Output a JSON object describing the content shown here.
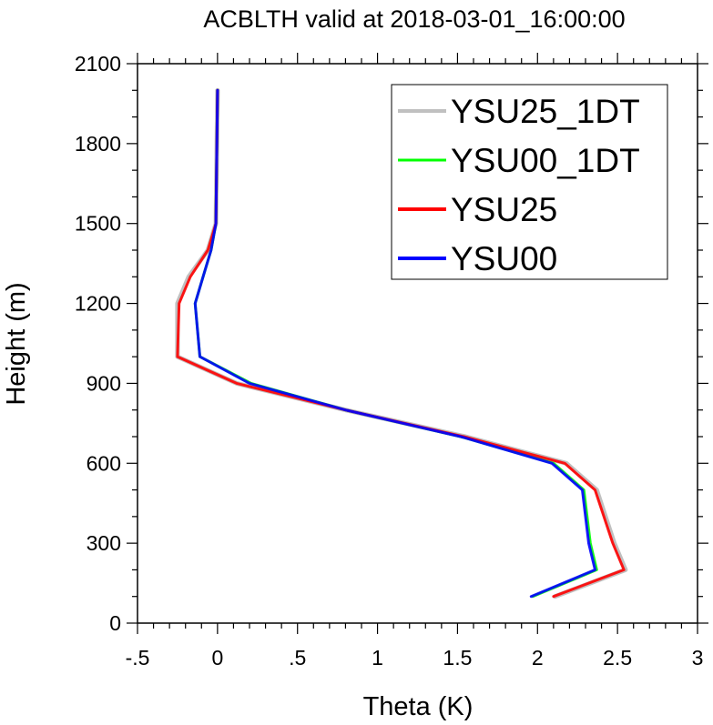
{
  "chart_data": {
    "type": "line",
    "title": "ACBLTH valid at 2018-03-01_16:00:00",
    "xlabel": "Theta (K)",
    "ylabel": "Height (m)",
    "xlim": [
      -0.5,
      3
    ],
    "ylim": [
      0,
      2100
    ],
    "x_ticks": [
      -0.5,
      0,
      0.5,
      1,
      1.5,
      2,
      2.5,
      3
    ],
    "x_tick_labels": [
      "-.5",
      "0",
      ".5",
      "1",
      "1.5",
      "2",
      "2.5",
      "3"
    ],
    "y_ticks": [
      0,
      300,
      600,
      900,
      1200,
      1500,
      1800,
      2100
    ],
    "y_tick_labels": [
      "0",
      "300",
      "600",
      "900",
      "1200",
      "1500",
      "1800",
      "2100"
    ],
    "grid": false,
    "legend_position": "top-right",
    "series": [
      {
        "name": "YSU25_1DT",
        "color": "#c0c0c0",
        "x": [
          2.11,
          2.55,
          2.48,
          2.37,
          2.18,
          1.55,
          0.8,
          0.12,
          -0.25,
          -0.25,
          -0.18,
          -0.06,
          -0.01,
          0.0
        ],
        "y": [
          100,
          200,
          300,
          500,
          600,
          700,
          800,
          900,
          1000,
          1200,
          1300,
          1400,
          1500,
          2000
        ]
      },
      {
        "name": "YSU00_1DT",
        "color": "#00ff00",
        "x": [
          1.97,
          2.37,
          2.33,
          2.29,
          2.1,
          1.52,
          0.8,
          0.21,
          -0.11,
          -0.14,
          -0.09,
          -0.04,
          -0.01,
          0.0
        ],
        "y": [
          100,
          200,
          300,
          500,
          600,
          700,
          800,
          900,
          1000,
          1200,
          1300,
          1400,
          1500,
          2000
        ]
      },
      {
        "name": "YSU25",
        "color": "#ff0000",
        "x": [
          2.1,
          2.54,
          2.47,
          2.36,
          2.17,
          1.54,
          0.8,
          0.12,
          -0.25,
          -0.24,
          -0.17,
          -0.06,
          -0.01,
          0.0
        ],
        "y": [
          100,
          200,
          300,
          500,
          600,
          700,
          800,
          900,
          1000,
          1200,
          1300,
          1400,
          1500,
          2000
        ]
      },
      {
        "name": "YSU00",
        "color": "#0000ff",
        "x": [
          1.96,
          2.36,
          2.32,
          2.28,
          2.09,
          1.52,
          0.8,
          0.2,
          -0.11,
          -0.14,
          -0.09,
          -0.04,
          -0.01,
          0.0
        ],
        "y": [
          100,
          200,
          300,
          500,
          600,
          700,
          800,
          900,
          1000,
          1200,
          1300,
          1400,
          1500,
          2000
        ]
      }
    ]
  }
}
